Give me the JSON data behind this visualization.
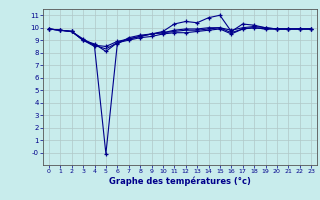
{
  "xlabel": "Graphe des températures (°c)",
  "background_color": "#c8ecec",
  "grid_color": "#b0c8c8",
  "line_color": "#00008b",
  "axis_color": "#555555",
  "xlim": [
    -0.5,
    23.5
  ],
  "ylim": [
    -1.0,
    11.5
  ],
  "yticks": [
    0,
    1,
    2,
    3,
    4,
    5,
    6,
    7,
    8,
    9,
    10,
    11
  ],
  "ytick_labels": [
    "-0",
    "1",
    "2",
    "3",
    "4",
    "5",
    "6",
    "7",
    "8",
    "9",
    "10",
    "11"
  ],
  "xticks": [
    0,
    1,
    2,
    3,
    4,
    5,
    6,
    7,
    8,
    9,
    10,
    11,
    12,
    13,
    14,
    15,
    16,
    17,
    18,
    19,
    20,
    21,
    22,
    23
  ],
  "series": [
    {
      "x": [
        0,
        1,
        2,
        3,
        4,
        5,
        6,
        7,
        8,
        9,
        10,
        11,
        12,
        13,
        14,
        15,
        16,
        17,
        18,
        19,
        20,
        21,
        22,
        23
      ],
      "y": [
        9.9,
        9.8,
        9.7,
        9.0,
        8.7,
        8.1,
        8.8,
        9.0,
        9.2,
        9.3,
        9.5,
        9.6,
        9.6,
        9.7,
        9.8,
        9.9,
        9.5,
        9.9,
        10.0,
        9.9,
        9.9,
        9.9,
        9.9,
        9.9
      ],
      "marker": "+"
    },
    {
      "x": [
        0,
        1,
        2,
        3,
        4,
        5,
        6,
        7,
        8,
        9,
        10,
        11,
        12,
        13,
        14,
        15,
        16,
        17,
        18,
        19,
        20,
        21,
        22,
        23
      ],
      "y": [
        9.9,
        9.8,
        9.7,
        9.0,
        8.5,
        -0.1,
        8.7,
        9.2,
        9.4,
        9.5,
        9.7,
        10.3,
        10.5,
        10.4,
        10.8,
        11.0,
        9.7,
        10.3,
        10.2,
        10.0,
        9.9,
        9.9,
        9.9,
        9.9
      ],
      "marker": "+"
    },
    {
      "x": [
        0,
        1,
        2,
        3,
        4,
        5,
        6,
        7,
        8,
        9,
        10,
        11,
        12,
        13,
        14,
        15,
        16,
        17,
        18,
        19,
        20,
        21,
        22,
        23
      ],
      "y": [
        9.9,
        9.8,
        9.7,
        9.1,
        8.6,
        8.5,
        8.9,
        9.1,
        9.3,
        9.5,
        9.6,
        9.8,
        9.9,
        9.9,
        10.0,
        10.0,
        9.8,
        10.0,
        10.1,
        10.0,
        9.9,
        9.9,
        9.9,
        9.9
      ],
      "marker": "+"
    },
    {
      "x": [
        0,
        1,
        2,
        3,
        4,
        5,
        6,
        7,
        8,
        9,
        10,
        11,
        12,
        13,
        14,
        15,
        16,
        17,
        18,
        19,
        20,
        21,
        22,
        23
      ],
      "y": [
        9.9,
        9.8,
        9.7,
        9.0,
        8.6,
        8.3,
        8.8,
        9.1,
        9.3,
        9.5,
        9.6,
        9.7,
        9.8,
        9.8,
        9.9,
        10.0,
        9.6,
        9.9,
        10.0,
        9.9,
        9.9,
        9.9,
        9.9,
        9.9
      ],
      "marker": null
    }
  ]
}
